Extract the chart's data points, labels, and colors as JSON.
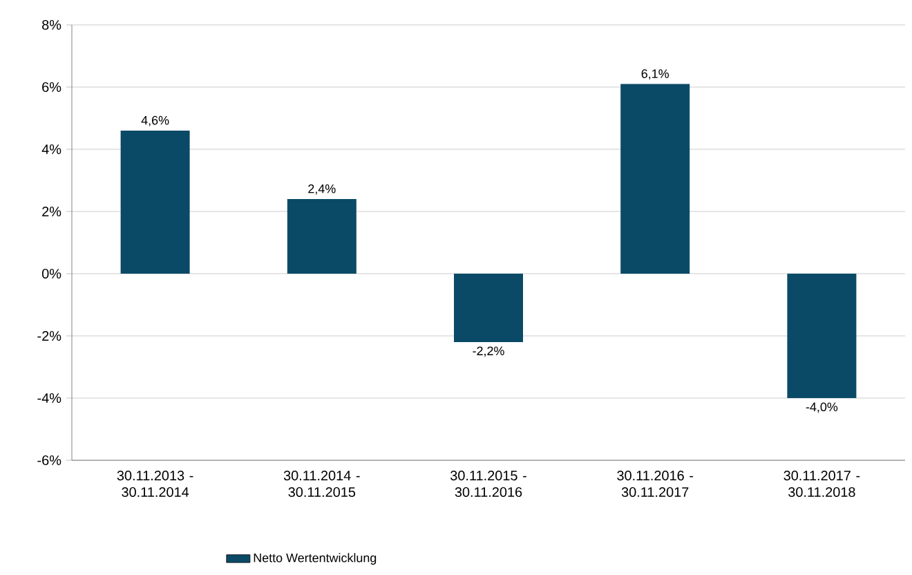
{
  "chart_data": {
    "type": "bar",
    "categories": [
      "30.11.2013 - 30.11.2014",
      "30.11.2014 - 30.11.2015",
      "30.11.2015 - 30.11.2016",
      "30.11.2016 - 30.11.2017",
      "30.11.2017 - 30.11.2018"
    ],
    "series": [
      {
        "name": "Netto Wertentwicklung",
        "color": "#0b4a66",
        "values": [
          4.6,
          2.4,
          -2.2,
          6.1,
          -4.0
        ],
        "value_labels": [
          "4,6%",
          "2,4%",
          "-2,2%",
          "6,1%",
          "-4,0%"
        ]
      }
    ],
    "ylim": [
      -6,
      8
    ],
    "yticks": [
      {
        "value": -6,
        "label": "-6%"
      },
      {
        "value": -4,
        "label": "-4%"
      },
      {
        "value": -2,
        "label": "-2%"
      },
      {
        "value": 0,
        "label": "0%"
      },
      {
        "value": 2,
        "label": "2%"
      },
      {
        "value": 4,
        "label": "4%"
      },
      {
        "value": 6,
        "label": "6%"
      },
      {
        "value": 8,
        "label": "8%"
      }
    ],
    "grid": "y",
    "legend": "bottom"
  }
}
